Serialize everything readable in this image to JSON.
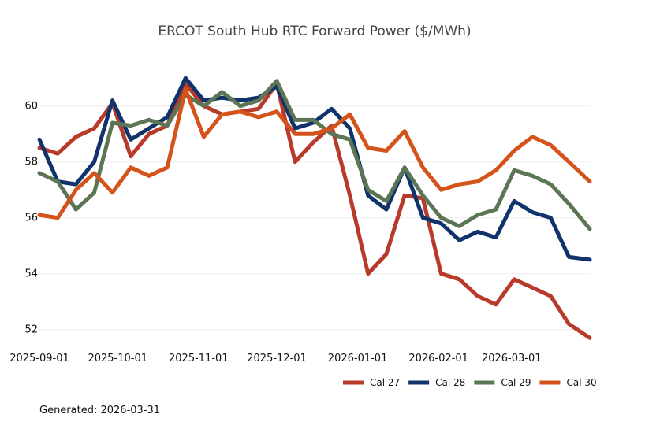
{
  "chart_data": {
    "type": "line",
    "title": "ERCOT South Hub RTC Forward Power ($/MWh)",
    "xlabel": "",
    "ylabel": "",
    "x_ticks": [
      "2025-09-01",
      "2025-10-01",
      "2025-11-01",
      "2025-12-01",
      "2026-01-01",
      "2026-02-01",
      "2026-03-01"
    ],
    "y_ticks": [
      52,
      54,
      56,
      58,
      60
    ],
    "x_range": [
      "2025-09-01",
      "2026-03-31"
    ],
    "ylim": [
      51.4,
      61.4
    ],
    "grid": "horizontal",
    "legend_position": "bottom-right",
    "dates": [
      "2025-09-01",
      "2025-09-08",
      "2025-09-15",
      "2025-09-22",
      "2025-09-29",
      "2025-10-06",
      "2025-10-13",
      "2025-10-20",
      "2025-10-27",
      "2025-11-03",
      "2025-11-10",
      "2025-11-17",
      "2025-11-24",
      "2025-12-01",
      "2025-12-08",
      "2025-12-15",
      "2025-12-22",
      "2025-12-29",
      "2026-01-05",
      "2026-01-12",
      "2026-01-19",
      "2026-01-26",
      "2026-02-02",
      "2026-02-09",
      "2026-02-16",
      "2026-02-23",
      "2026-03-02",
      "2026-03-09",
      "2026-03-16",
      "2026-03-23",
      "2026-03-31"
    ],
    "series": [
      {
        "name": "Cal 27",
        "color": "#b83a2a",
        "values": [
          58.5,
          58.3,
          58.9,
          59.2,
          60.1,
          58.2,
          59.0,
          59.3,
          60.8,
          60.0,
          59.7,
          59.8,
          59.9,
          60.8,
          58.0,
          58.7,
          59.3,
          56.8,
          54.0,
          54.7,
          56.8,
          56.7,
          54.0,
          53.8,
          53.2,
          52.9,
          53.8,
          53.5,
          53.2,
          52.2,
          51.7
        ]
      },
      {
        "name": "Cal 28",
        "color": "#10336b",
        "values": [
          58.8,
          57.3,
          57.2,
          58.0,
          60.2,
          58.8,
          59.2,
          59.6,
          61.0,
          60.2,
          60.3,
          60.2,
          60.3,
          60.7,
          59.2,
          59.4,
          59.9,
          59.2,
          56.8,
          56.3,
          57.8,
          56.0,
          55.8,
          55.2,
          55.5,
          55.3,
          56.6,
          56.2,
          56.0,
          54.6,
          54.5
        ]
      },
      {
        "name": "Cal 29",
        "color": "#5b7555",
        "values": [
          57.6,
          57.3,
          56.3,
          56.9,
          59.4,
          59.3,
          59.5,
          59.3,
          60.4,
          60.0,
          60.5,
          60.0,
          60.2,
          60.9,
          59.5,
          59.5,
          59.0,
          58.8,
          57.0,
          56.6,
          57.8,
          56.8,
          56.0,
          55.7,
          56.1,
          56.3,
          57.7,
          57.5,
          57.2,
          56.5,
          55.6
        ]
      },
      {
        "name": "Cal 30",
        "color": "#d4531b",
        "values": [
          56.1,
          56.0,
          57.0,
          57.6,
          56.9,
          57.8,
          57.5,
          57.8,
          60.6,
          58.9,
          59.7,
          59.8,
          59.6,
          59.8,
          59.0,
          59.0,
          59.2,
          59.7,
          58.5,
          58.4,
          59.1,
          57.8,
          57.0,
          57.2,
          57.3,
          57.7,
          58.4,
          58.9,
          58.6,
          58.0,
          57.3
        ]
      }
    ]
  },
  "footer": {
    "generated_label": "Generated: 2026-03-31"
  }
}
